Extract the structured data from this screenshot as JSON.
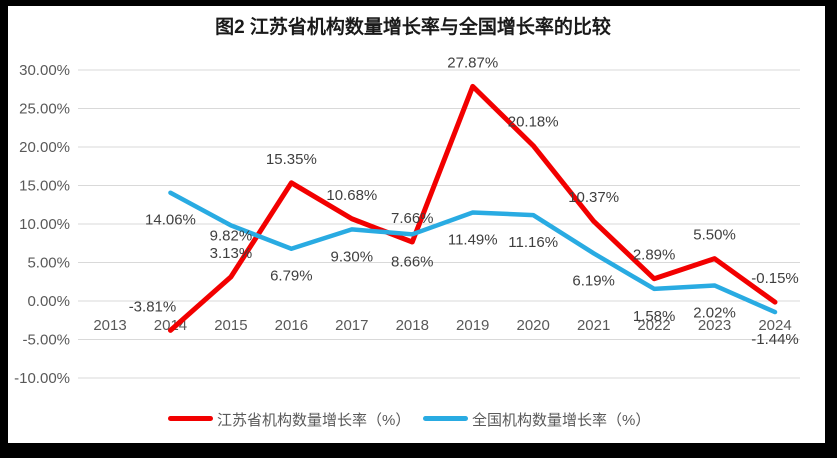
{
  "title": "图2  江苏省机构数量增长率与全国增长率的比较",
  "frame_colors": {
    "border": "#000000",
    "canvas": "#ffffff",
    "gridline": "#d9d9d9",
    "axis_text": "#595959",
    "data_label_text": "#3f3f3f"
  },
  "chart_data": {
    "type": "line",
    "title": "图2  江苏省机构数量增长率与全国增长率的比较",
    "categories": [
      "2013",
      "2014",
      "2015",
      "2016",
      "2017",
      "2018",
      "2019",
      "2020",
      "2021",
      "2022",
      "2023",
      "2024"
    ],
    "series": [
      {
        "name": "江苏省机构数量增长率（%）",
        "color": "#f20000",
        "label_position": "above",
        "values": [
          null,
          -3.81,
          3.13,
          15.35,
          10.68,
          7.66,
          27.87,
          20.18,
          10.37,
          2.89,
          5.5,
          -0.15
        ],
        "labels": [
          "",
          "-3.81%",
          "3.13%",
          "15.35%",
          "10.68%",
          "7.66%",
          "27.87%",
          "20.18%",
          "10.37%",
          "2.89%",
          "5.50%",
          "-0.15%"
        ]
      },
      {
        "name": "全国机构数量增长率（%）",
        "color": "#29abe2",
        "label_position": "below",
        "values": [
          null,
          14.06,
          9.82,
          6.79,
          9.3,
          8.66,
          11.49,
          11.16,
          6.19,
          1.58,
          2.02,
          -1.44
        ],
        "labels": [
          "",
          "14.06%",
          "9.82%",
          "6.79%",
          "9.30%",
          "8.66%",
          "11.49%",
          "11.16%",
          "6.19%",
          "1.58%",
          "2.02%",
          "-1.44%"
        ]
      }
    ],
    "y_ticks": [
      "30.00%",
      "25.00%",
      "20.00%",
      "15.00%",
      "10.00%",
      "5.00%",
      "0.00%",
      "-5.00%",
      "-10.00%"
    ],
    "y_tick_values": [
      30,
      25,
      20,
      15,
      10,
      5,
      0,
      -5,
      -10
    ],
    "ylim": [
      -10,
      30
    ],
    "grid": true,
    "legend_position": "bottom"
  }
}
